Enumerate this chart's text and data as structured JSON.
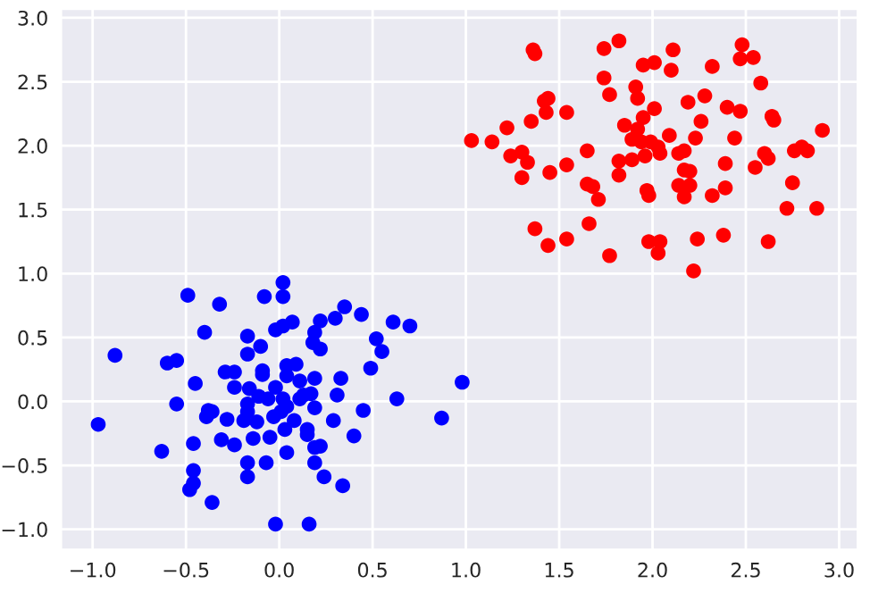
{
  "chart_data": {
    "type": "scatter",
    "xlim": [
      -1.17,
      3.1
    ],
    "ylim": [
      -1.16,
      3.07
    ],
    "xticks": [
      {
        "value": -1.0,
        "label": "−1.0"
      },
      {
        "value": -0.5,
        "label": "−0.5"
      },
      {
        "value": 0.0,
        "label": "0.0"
      },
      {
        "value": 0.5,
        "label": "0.5"
      },
      {
        "value": 1.0,
        "label": "1.0"
      },
      {
        "value": 1.5,
        "label": "1.5"
      },
      {
        "value": 2.0,
        "label": "2.0"
      },
      {
        "value": 2.5,
        "label": "2.5"
      },
      {
        "value": 3.0,
        "label": "3.0"
      }
    ],
    "yticks": [
      {
        "value": -1.0,
        "label": "−1.0"
      },
      {
        "value": -0.5,
        "label": "−0.5"
      },
      {
        "value": 0.0,
        "label": "0.0"
      },
      {
        "value": 0.5,
        "label": "0.5"
      },
      {
        "value": 1.0,
        "label": "1.0"
      },
      {
        "value": 1.5,
        "label": "1.5"
      },
      {
        "value": 2.0,
        "label": "2.0"
      },
      {
        "value": 2.5,
        "label": "2.5"
      },
      {
        "value": 3.0,
        "label": "3.0"
      }
    ],
    "grid": true,
    "marker": "circle",
    "series": [
      {
        "color": "#0000ff",
        "x": [
          -0.49,
          -0.32,
          -0.08,
          0.02,
          0.02,
          -0.4,
          -0.17,
          -0.1,
          -0.02,
          0.02,
          0.07,
          -0.88,
          -0.6,
          -0.55,
          -0.17,
          -0.45,
          -0.29,
          -0.24,
          -0.24,
          -0.09,
          -0.09,
          0.04,
          0.09,
          0.04,
          0.11,
          0.19,
          -0.16,
          -0.11,
          -0.06,
          -0.02,
          -0.17,
          -0.17,
          0.02,
          0.04,
          -0.03,
          0.01,
          0.11,
          0.17,
          -0.55,
          -0.38,
          -0.39,
          -0.36,
          -0.28,
          -0.19,
          -0.12,
          0.08,
          0.03,
          0.15,
          0.15,
          -0.63,
          -0.46,
          -0.31,
          -0.24,
          -0.14,
          -0.05,
          0.04,
          -0.17,
          -0.07,
          -0.17,
          -0.46,
          -0.46,
          -0.48,
          -0.36,
          -0.02,
          0.16,
          -0.97,
          0.22,
          0.3,
          0.35,
          0.44,
          0.61,
          0.7,
          0.19,
          0.18,
          0.22,
          0.52,
          0.55,
          0.49,
          0.33,
          0.31,
          0.19,
          0.45,
          0.63,
          0.98,
          0.87,
          0.29,
          0.4,
          0.19,
          0.22,
          0.19,
          0.24,
          0.34,
          0.13
        ],
        "values": [
          0.83,
          0.76,
          0.82,
          0.93,
          0.82,
          0.54,
          0.51,
          0.43,
          0.56,
          0.59,
          0.62,
          0.36,
          0.3,
          0.32,
          0.37,
          0.14,
          0.23,
          0.23,
          0.11,
          0.24,
          0.21,
          0.28,
          0.29,
          0.2,
          0.16,
          0.18,
          0.1,
          0.04,
          0.02,
          0.11,
          -0.02,
          -0.08,
          0.02,
          -0.04,
          -0.12,
          -0.08,
          0.02,
          0.06,
          -0.02,
          -0.07,
          -0.12,
          -0.08,
          -0.14,
          -0.15,
          -0.16,
          -0.15,
          -0.22,
          -0.22,
          -0.26,
          -0.39,
          -0.33,
          -0.3,
          -0.34,
          -0.29,
          -0.28,
          -0.4,
          -0.48,
          -0.48,
          -0.59,
          -0.54,
          -0.64,
          -0.69,
          -0.79,
          -0.96,
          -0.96,
          -0.18,
          0.63,
          0.65,
          0.74,
          0.68,
          0.62,
          0.59,
          0.54,
          0.46,
          0.41,
          0.49,
          0.39,
          0.26,
          0.18,
          0.05,
          -0.05,
          -0.07,
          0.02,
          0.15,
          -0.13,
          -0.15,
          -0.27,
          -0.36,
          -0.35,
          -0.48,
          -0.59,
          -0.66,
          0.05
        ]
      },
      {
        "color": "#ff0000",
        "x": [
          1.03,
          1.14,
          1.22,
          1.24,
          1.3,
          1.33,
          1.3,
          1.36,
          1.37,
          1.35,
          1.42,
          1.44,
          1.43,
          1.54,
          1.45,
          1.54,
          1.37,
          1.44,
          1.54,
          1.65,
          1.74,
          1.82,
          1.74,
          1.77,
          1.66,
          1.65,
          1.68,
          1.71,
          1.77,
          1.82,
          1.82,
          1.85,
          1.91,
          1.92,
          1.95,
          2.01,
          1.95,
          1.92,
          1.89,
          1.94,
          1.99,
          1.96,
          1.89,
          2.01,
          1.97,
          1.98,
          1.98,
          2.03,
          2.11,
          2.1,
          2.32,
          2.48,
          2.47,
          2.54,
          2.58,
          2.19,
          2.28,
          2.26,
          2.4,
          2.47,
          2.64,
          2.65,
          2.91,
          2.09,
          2.03,
          2.04,
          2.23,
          2.44,
          2.14,
          2.17,
          2.39,
          2.6,
          2.62,
          2.55,
          2.76,
          2.8,
          2.83,
          2.17,
          2.2,
          2.14,
          2.2,
          2.17,
          2.32,
          2.39,
          2.75,
          2.72,
          2.88,
          2.04,
          2.24,
          2.38,
          2.62,
          2.22
        ],
        "values": [
          2.04,
          2.03,
          2.14,
          1.92,
          1.95,
          1.87,
          1.75,
          2.75,
          2.72,
          2.19,
          2.35,
          2.37,
          2.26,
          2.26,
          1.79,
          1.85,
          1.35,
          1.22,
          1.27,
          1.96,
          2.76,
          2.82,
          2.53,
          2.4,
          1.39,
          1.7,
          1.68,
          1.58,
          1.14,
          1.88,
          1.77,
          2.16,
          2.46,
          2.37,
          2.63,
          2.65,
          2.22,
          2.13,
          2.05,
          2.03,
          2.03,
          1.92,
          1.89,
          2.29,
          1.65,
          1.61,
          1.25,
          1.16,
          2.75,
          2.59,
          2.62,
          2.79,
          2.68,
          2.69,
          2.49,
          2.34,
          2.39,
          2.19,
          2.3,
          2.27,
          2.23,
          2.2,
          2.12,
          2.08,
          1.99,
          1.94,
          2.06,
          2.06,
          1.94,
          1.96,
          1.86,
          1.94,
          1.9,
          1.83,
          1.96,
          1.99,
          1.96,
          1.81,
          1.8,
          1.69,
          1.69,
          1.6,
          1.61,
          1.67,
          1.71,
          1.51,
          1.51,
          1.25,
          1.27,
          1.3,
          1.25,
          1.02
        ]
      }
    ]
  }
}
